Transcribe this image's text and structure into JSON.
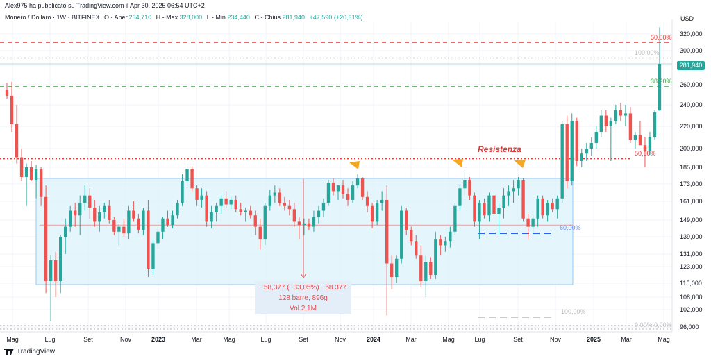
{
  "attribution": "Alex975 ha pubblicato su TradingView.com il Apr 30, 2025 06:54 UTC+2",
  "ohlc": {
    "symbol": "Monero / Dollaro · 1W · BITFINEX",
    "open_label": "O - Aper.",
    "open": "234,710",
    "high_label": "H - Max.",
    "high": "328,000",
    "low_label": "L - Min.",
    "low": "234,440",
    "close_label": "C - Chius.",
    "close": "281,940",
    "change": "+47,590 (+20,31%)"
  },
  "footer": {
    "brand": "TradingView"
  },
  "annotations": {
    "resistance_label": "Resistenza",
    "measure_line1": "−58,377 (−33,05%) −58.377",
    "measure_line2": "128 barre, 896g",
    "measure_line3": "Vol 2,1M",
    "last_price": "281,940"
  },
  "colors": {
    "up": "#26a69a",
    "down": "#ef5350",
    "range_fill": "#d9f2fb",
    "resistance": "#e53935",
    "green_level": "#43a047",
    "arrow": "#f5a623",
    "blue_dash": "#2962ff"
  },
  "chart_data": {
    "type": "candlestick",
    "title": "Monero / Dollaro · 1W · BITFINEX",
    "currency": "USD",
    "y_ticks": [
      320000,
      300000,
      280000,
      260000,
      240000,
      220000,
      200000,
      185000,
      173000,
      161000,
      149000,
      139000,
      131000,
      123000,
      115000,
      108000,
      102000,
      96000
    ],
    "y_tick_labels": [
      "320,000",
      "300,000",
      "280,000",
      "260,000",
      "240,000",
      "220,000",
      "200,000",
      "185,000",
      "173,000",
      "161,000",
      "149,000",
      "139,000",
      "131,000",
      "123,000",
      "115,000",
      "108,000",
      "102,000",
      "96,000"
    ],
    "x_ticks": [
      "Mag",
      "Lug",
      "Set",
      "Nov",
      "2023",
      "Mar",
      "Mag",
      "Lug",
      "Set",
      "Nov",
      "2024",
      "Mar",
      "Mag",
      "Lug",
      "Set",
      "Nov",
      "2025",
      "Mar",
      "Mag"
    ],
    "levels": [
      {
        "name": "50,00%",
        "value": 310000,
        "style": "red-dashed"
      },
      {
        "name": "100,00%",
        "value": 290000,
        "style": "grey-dotted"
      },
      {
        "name": "38,20%",
        "value": 258000,
        "style": "green-dashed"
      },
      {
        "name": "50,00%",
        "value": 192000,
        "style": "red-dotted"
      },
      {
        "name": "60,00%",
        "value": 146000,
        "style": "red-thin"
      },
      {
        "name": "100,00%",
        "value": 99000,
        "style": "grey-dashed"
      },
      {
        "name": "0,00%",
        "value": 96500,
        "style": "grey-dotted"
      }
    ],
    "labels": [
      "50,00%",
      "100,00%",
      "38,20%",
      "50,00%",
      "60,00%",
      "100,00%",
      "0,00%",
      "0,00%"
    ],
    "range_box": {
      "x_start": "Mag 2022",
      "x_end": "Nov 2024",
      "top": 177000,
      "bottom": 114000
    },
    "resistance": 192000,
    "candles": [
      [
        255000,
        262000,
        246000,
        249000
      ],
      [
        249000,
        263000,
        215000,
        222000
      ],
      [
        222000,
        240000,
        188000,
        193000
      ],
      [
        193000,
        200000,
        175000,
        178000
      ],
      [
        178000,
        188000,
        158000,
        185000
      ],
      [
        185000,
        190000,
        175000,
        176000
      ],
      [
        176000,
        187000,
        163000,
        184000
      ],
      [
        184000,
        185000,
        158000,
        164000
      ],
      [
        164000,
        172000,
        110000,
        116000
      ],
      [
        116000,
        130000,
        98000,
        127000
      ],
      [
        127000,
        132000,
        108000,
        116000
      ],
      [
        116000,
        140000,
        110000,
        139000
      ],
      [
        139000,
        150000,
        131000,
        145000
      ],
      [
        145000,
        158000,
        142000,
        155000
      ],
      [
        155000,
        160000,
        145000,
        152000
      ],
      [
        152000,
        165000,
        140000,
        160000
      ],
      [
        160000,
        172000,
        155000,
        165000
      ],
      [
        165000,
        170000,
        150000,
        157000
      ],
      [
        157000,
        162000,
        145000,
        148000
      ],
      [
        148000,
        158000,
        142000,
        154000
      ],
      [
        154000,
        160000,
        150000,
        158000
      ],
      [
        158000,
        162000,
        147000,
        149000
      ],
      [
        149000,
        151000,
        140000,
        142000
      ],
      [
        142000,
        147000,
        135000,
        145000
      ],
      [
        145000,
        150000,
        139000,
        141000
      ],
      [
        141000,
        158000,
        138000,
        155000
      ],
      [
        155000,
        161000,
        148000,
        150000
      ],
      [
        150000,
        153000,
        141000,
        143000
      ],
      [
        143000,
        157000,
        140000,
        155000
      ],
      [
        155000,
        162000,
        118000,
        122000
      ],
      [
        122000,
        138000,
        119000,
        136000
      ],
      [
        136000,
        145000,
        133000,
        142000
      ],
      [
        142000,
        151000,
        138000,
        150000
      ],
      [
        150000,
        155000,
        145000,
        146000
      ],
      [
        146000,
        155000,
        144000,
        152000
      ],
      [
        152000,
        162000,
        150000,
        160000
      ],
      [
        160000,
        180000,
        158000,
        175000
      ],
      [
        175000,
        186000,
        170000,
        184000
      ],
      [
        184000,
        186000,
        168000,
        170000
      ],
      [
        170000,
        172000,
        158000,
        162000
      ],
      [
        162000,
        170000,
        157000,
        165000
      ],
      [
        165000,
        168000,
        145000,
        148000
      ],
      [
        148000,
        158000,
        144000,
        154000
      ],
      [
        154000,
        160000,
        148000,
        158000
      ],
      [
        158000,
        165000,
        153000,
        163000
      ],
      [
        163000,
        168000,
        157000,
        159000
      ],
      [
        159000,
        164000,
        156000,
        162000
      ],
      [
        162000,
        165000,
        154000,
        156000
      ],
      [
        156000,
        160000,
        152000,
        154000
      ],
      [
        154000,
        157000,
        148000,
        155000
      ],
      [
        155000,
        158000,
        150000,
        152000
      ],
      [
        152000,
        155000,
        140000,
        145000
      ],
      [
        145000,
        150000,
        133000,
        138000
      ],
      [
        138000,
        160000,
        135000,
        158000
      ],
      [
        158000,
        169000,
        155000,
        165000
      ],
      [
        165000,
        172000,
        160000,
        167000
      ],
      [
        167000,
        170000,
        158000,
        160000
      ],
      [
        160000,
        164000,
        155000,
        158000
      ],
      [
        158000,
        162000,
        152000,
        156000
      ],
      [
        156000,
        160000,
        145000,
        148000
      ],
      [
        148000,
        151000,
        138000,
        146000
      ],
      [
        146000,
        150000,
        140000,
        147000
      ],
      [
        147000,
        150000,
        143000,
        145000
      ],
      [
        145000,
        155000,
        142000,
        151000
      ],
      [
        151000,
        158000,
        147000,
        155000
      ],
      [
        155000,
        163000,
        151000,
        160000
      ],
      [
        160000,
        176000,
        158000,
        174000
      ],
      [
        174000,
        177000,
        165000,
        168000
      ],
      [
        168000,
        172000,
        162000,
        172000
      ],
      [
        172000,
        176000,
        163000,
        166000
      ],
      [
        166000,
        170000,
        158000,
        162000
      ],
      [
        162000,
        175000,
        160000,
        172000
      ],
      [
        172000,
        180000,
        170000,
        177000
      ],
      [
        177000,
        178000,
        162000,
        164000
      ],
      [
        164000,
        168000,
        154000,
        158000
      ],
      [
        158000,
        160000,
        144000,
        148000
      ],
      [
        148000,
        162000,
        146000,
        160000
      ],
      [
        160000,
        168000,
        155000,
        162000
      ],
      [
        162000,
        172000,
        100000,
        125000
      ],
      [
        125000,
        130000,
        112000,
        118000
      ],
      [
        118000,
        130000,
        115000,
        128000
      ],
      [
        128000,
        158000,
        125000,
        155000
      ],
      [
        155000,
        157000,
        140000,
        143000
      ],
      [
        143000,
        145000,
        135000,
        137000
      ],
      [
        137000,
        140000,
        128000,
        130000
      ],
      [
        130000,
        135000,
        113000,
        116000
      ],
      [
        116000,
        130000,
        108000,
        126000
      ],
      [
        126000,
        129000,
        117000,
        119000
      ],
      [
        119000,
        142000,
        117000,
        138000
      ],
      [
        138000,
        140000,
        130000,
        135000
      ],
      [
        135000,
        139000,
        132000,
        137000
      ],
      [
        137000,
        145000,
        134000,
        142000
      ],
      [
        142000,
        160000,
        140000,
        158000
      ],
      [
        158000,
        172000,
        155000,
        170000
      ],
      [
        170000,
        184000,
        165000,
        176000
      ],
      [
        176000,
        178000,
        162000,
        165000
      ],
      [
        165000,
        167000,
        145000,
        148000
      ],
      [
        148000,
        162000,
        138000,
        160000
      ],
      [
        160000,
        163000,
        150000,
        152000
      ],
      [
        152000,
        167000,
        148000,
        165000
      ],
      [
        165000,
        168000,
        150000,
        153000
      ],
      [
        153000,
        160000,
        140000,
        157000
      ],
      [
        157000,
        170000,
        150000,
        165000
      ],
      [
        165000,
        172000,
        158000,
        168000
      ],
      [
        168000,
        176000,
        160000,
        170000
      ],
      [
        170000,
        178000,
        165000,
        176000
      ],
      [
        176000,
        177000,
        148000,
        150000
      ],
      [
        150000,
        153000,
        138000,
        145000
      ],
      [
        145000,
        152000,
        140000,
        150000
      ],
      [
        150000,
        165000,
        145000,
        163000
      ],
      [
        163000,
        165000,
        150000,
        152000
      ],
      [
        152000,
        162000,
        148000,
        160000
      ],
      [
        160000,
        163000,
        154000,
        156000
      ],
      [
        156000,
        165000,
        150000,
        163000
      ],
      [
        163000,
        225000,
        160000,
        222000
      ],
      [
        222000,
        230000,
        170000,
        175000
      ],
      [
        175000,
        232000,
        172000,
        225000
      ],
      [
        225000,
        228000,
        186000,
        190000
      ],
      [
        190000,
        200000,
        185000,
        196000
      ],
      [
        196000,
        205000,
        190000,
        200000
      ],
      [
        200000,
        210000,
        194000,
        205000
      ],
      [
        205000,
        220000,
        200000,
        215000
      ],
      [
        215000,
        235000,
        210000,
        230000
      ],
      [
        230000,
        235000,
        215000,
        220000
      ],
      [
        220000,
        228000,
        190000,
        225000
      ],
      [
        225000,
        240000,
        222000,
        235000
      ],
      [
        235000,
        242000,
        225000,
        230000
      ],
      [
        230000,
        240000,
        220000,
        232000
      ],
      [
        232000,
        238000,
        205000,
        208000
      ],
      [
        208000,
        215000,
        200000,
        212000
      ],
      [
        212000,
        225000,
        205000,
        203000
      ],
      [
        203000,
        210000,
        185000,
        198000
      ],
      [
        198000,
        215000,
        195000,
        210000
      ],
      [
        210000,
        235000,
        208000,
        233000
      ],
      [
        234710,
        328000,
        234440,
        281940
      ]
    ]
  }
}
